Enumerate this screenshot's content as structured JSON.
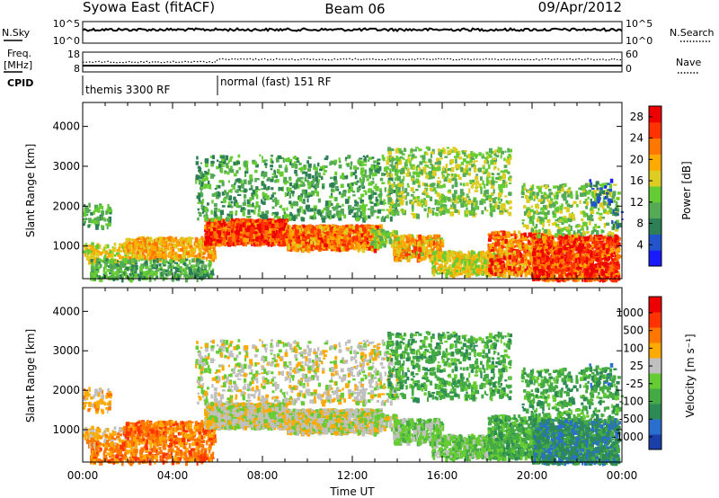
{
  "header": {
    "left": "Syowa East (fitACF)",
    "center": "Beam 06",
    "right": "09/Apr/2012"
  },
  "nsky_panel": {
    "left_label": "N.Sky",
    "right_label": "N.Search",
    "left_ticks": [
      "10^5",
      "10^0"
    ],
    "right_ticks": [
      "10^5",
      "10^0"
    ]
  },
  "freq_panel": {
    "left_label_1": "Freq.",
    "left_label_2": "[MHz]",
    "right_label": "Nave",
    "left_ticks": [
      "18",
      "8"
    ],
    "right_ticks": [
      "60",
      "0"
    ]
  },
  "cpid": {
    "label": "CPID",
    "segments": [
      {
        "text": "themis 3300 RF",
        "start_hour": 0
      },
      {
        "text": "normal (fast) 151 RF",
        "start_hour": 6
      }
    ]
  },
  "chart_data": [
    {
      "type": "heatmap",
      "title": "",
      "xlabel": "",
      "ylabel": "Slant Range [km]",
      "y_ticks": [
        "1000",
        "2000",
        "3000",
        "4000"
      ],
      "ylim": [
        180,
        4600
      ],
      "xlim": [
        0,
        24
      ],
      "colorbar": {
        "label": "Power [dB]",
        "ticks": [
          "4",
          "8",
          "12",
          "16",
          "20",
          "24",
          "28"
        ],
        "range": [
          0,
          30
        ],
        "colors": [
          "#1a1aff",
          "#2255cc",
          "#2d7f55",
          "#55aa55",
          "#66cc33",
          "#ddcc22",
          "#ffaa00",
          "#ff7700",
          "#ff3300",
          "#ee0000"
        ]
      }
    },
    {
      "type": "heatmap",
      "title": "",
      "xlabel": "Time UT",
      "ylabel": "Slant Range [km]",
      "y_ticks": [
        "1000",
        "2000",
        "3000",
        "4000"
      ],
      "x_ticks": [
        "00:00",
        "04:00",
        "08:00",
        "12:00",
        "16:00",
        "20:00",
        "00:00"
      ],
      "ylim": [
        180,
        4600
      ],
      "xlim": [
        0,
        24
      ],
      "colorbar": {
        "label": "Velocity [m s⁻¹]",
        "ticks": [
          "1000",
          "500",
          "100",
          "25",
          "-25",
          "-100",
          "-500",
          "-1000"
        ],
        "colors": [
          "#1a3fa8",
          "#2a6fd0",
          "#2d8a55",
          "#44aa44",
          "#66cc33",
          "#c0c0c0",
          "#ffaa00",
          "#ff7700",
          "#ff3300",
          "#ee0000"
        ]
      }
    }
  ]
}
